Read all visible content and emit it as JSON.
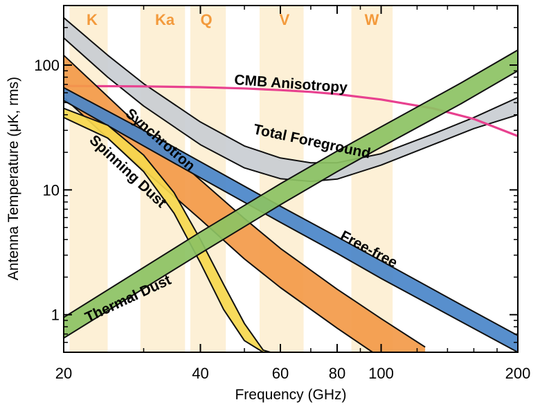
{
  "chart_data": {
    "type": "area",
    "xlabel": "Frequency (GHz)",
    "ylabel": "Antenna Temperature (μK, rms)",
    "xscale": "log",
    "yscale": "log",
    "xlim": [
      20,
      200
    ],
    "ylim": [
      0.5,
      300
    ],
    "xticks": [
      20,
      40,
      60,
      80,
      100,
      200
    ],
    "xtick_labels": [
      "20",
      "40",
      "60",
      "80",
      "100",
      "200"
    ],
    "yticks": [
      1,
      10,
      100
    ],
    "ytick_labels": [
      "1",
      "10",
      "100"
    ],
    "bands": [
      {
        "label": "K",
        "range": [
          20.6,
          25.0
        ]
      },
      {
        "label": "Ka",
        "range": [
          29.5,
          37.0
        ]
      },
      {
        "label": "Q",
        "range": [
          38.0,
          45.5
        ]
      },
      {
        "label": "V",
        "range": [
          54.0,
          67.5
        ]
      },
      {
        "label": "W",
        "range": [
          86.0,
          106.0
        ]
      }
    ],
    "series": [
      {
        "name": "Total Foreground",
        "kind": "band",
        "color": "#c9cdd2",
        "x": [
          20,
          25,
          30,
          40,
          50,
          60,
          70,
          80,
          100,
          130,
          160,
          200
        ],
        "lower": [
          165,
          80,
          47,
          23,
          15,
          12.3,
          11.7,
          12.2,
          15.8,
          23,
          31,
          40
        ],
        "upper": [
          240,
          120,
          71,
          35,
          22.5,
          18,
          16.5,
          16.5,
          19.5,
          28,
          38,
          55
        ]
      },
      {
        "name": "CMB Anisotropy",
        "kind": "line",
        "color": "#e8418f",
        "x": [
          20,
          30,
          40,
          50,
          60,
          70,
          80,
          100,
          130,
          160,
          200
        ],
        "values": [
          68,
          67.5,
          66.5,
          65,
          63,
          61,
          58.5,
          53,
          45,
          37,
          27
        ]
      },
      {
        "name": "Synchrotron",
        "kind": "band",
        "color": "#f39a49",
        "x": [
          20,
          25,
          30,
          40,
          50,
          60,
          80,
          100,
          125
        ],
        "lower": [
          55,
          26,
          14.5,
          5.8,
          2.8,
          1.65,
          0.78,
          0.45,
          0.27
        ],
        "upper": [
          120,
          56,
          30,
          12,
          5.9,
          3.4,
          1.6,
          0.93,
          0.55
        ]
      },
      {
        "name": "Free-free",
        "kind": "band",
        "color": "#4a86c9",
        "x": [
          20,
          30,
          40,
          60,
          80,
          100,
          150,
          200
        ],
        "lower": [
          52,
          22.5,
          12.5,
          5.5,
          3.1,
          1.95,
          0.88,
          0.5
        ],
        "upper": [
          66,
          30,
          16.8,
          7.4,
          4.2,
          2.7,
          1.2,
          0.68
        ]
      },
      {
        "name": "Spinning Dust",
        "kind": "band",
        "color": "#f6d84e",
        "x": [
          20,
          25,
          30,
          35,
          40,
          45,
          50,
          55,
          57
        ],
        "lower": [
          38,
          26,
          14,
          6.5,
          2.6,
          1.1,
          0.62,
          0.5,
          0.5
        ],
        "upper": [
          45,
          33,
          19,
          9.5,
          4.0,
          1.75,
          0.85,
          0.52,
          0.5
        ]
      },
      {
        "name": "Thermal Dust",
        "kind": "band",
        "color": "#8cc263",
        "x": [
          20,
          40,
          60,
          80,
          100,
          150,
          200
        ],
        "lower": [
          0.65,
          3.1,
          7.6,
          14,
          22,
          49,
          90
        ],
        "upper": [
          0.95,
          4.6,
          11.2,
          20.5,
          32,
          72,
          132
        ]
      }
    ],
    "annotations": [
      {
        "text": "K",
        "target": "band"
      },
      {
        "text": "Ka",
        "target": "band"
      },
      {
        "text": "Q",
        "target": "band"
      },
      {
        "text": "V",
        "target": "band"
      },
      {
        "text": "W",
        "target": "band"
      },
      {
        "text": "CMB Anisotropy",
        "target": "CMB Anisotropy"
      },
      {
        "text": "Total Foreground",
        "target": "Total Foreground"
      },
      {
        "text": "Synchrotron",
        "target": "Synchrotron"
      },
      {
        "text": "Spinning Dust",
        "target": "Spinning Dust"
      },
      {
        "text": "Free-free",
        "target": "Free-free"
      },
      {
        "text": "Thermal Dust",
        "target": "Thermal Dust"
      }
    ]
  }
}
